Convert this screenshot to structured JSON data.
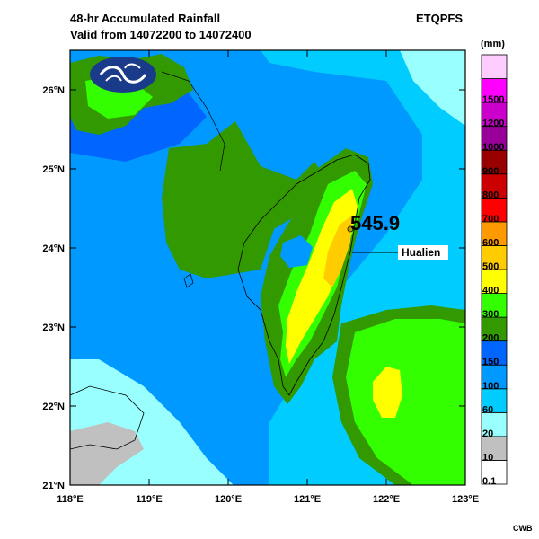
{
  "header": {
    "title_line1": "48-hr Accumulated Rainfall",
    "title_line2": "Valid from 14072200 to 14072400",
    "model": "ETQPFS"
  },
  "footer": {
    "credit": "CWB"
  },
  "map": {
    "x_ticks": [
      "118°E",
      "119°E",
      "120°E",
      "121°E",
      "122°E",
      "123°E"
    ],
    "y_ticks": [
      "21°N",
      "22°N",
      "23°N",
      "24°N",
      "25°N",
      "26°N"
    ],
    "lon_range": [
      118,
      123
    ],
    "lat_range": [
      21,
      26.5
    ]
  },
  "legend": {
    "unit": "(mm)",
    "levels": [
      {
        "label": "0.1",
        "color": "#ffffff"
      },
      {
        "label": "10",
        "color": "#c0c0c0"
      },
      {
        "label": "20",
        "color": "#99ffff"
      },
      {
        "label": "60",
        "color": "#00ccff"
      },
      {
        "label": "100",
        "color": "#0099ff"
      },
      {
        "label": "150",
        "color": "#0066ff"
      },
      {
        "label": "200",
        "color": "#339900"
      },
      {
        "label": "300",
        "color": "#33ff00"
      },
      {
        "label": "400",
        "color": "#ffff00"
      },
      {
        "label": "500",
        "color": "#ffcc00"
      },
      {
        "label": "600",
        "color": "#ff9900"
      },
      {
        "label": "700",
        "color": "#ff0000"
      },
      {
        "label": "800",
        "color": "#cc0000"
      },
      {
        "label": "900",
        "color": "#990000"
      },
      {
        "label": "1000",
        "color": "#990099"
      },
      {
        "label": "1200",
        "color": "#cc00cc"
      },
      {
        "label": "1500",
        "color": "#ff00ff"
      },
      {
        "label": "",
        "color": "#ffccff"
      }
    ]
  },
  "annotations": {
    "max_value": "545.9",
    "city": "Hualien"
  }
}
